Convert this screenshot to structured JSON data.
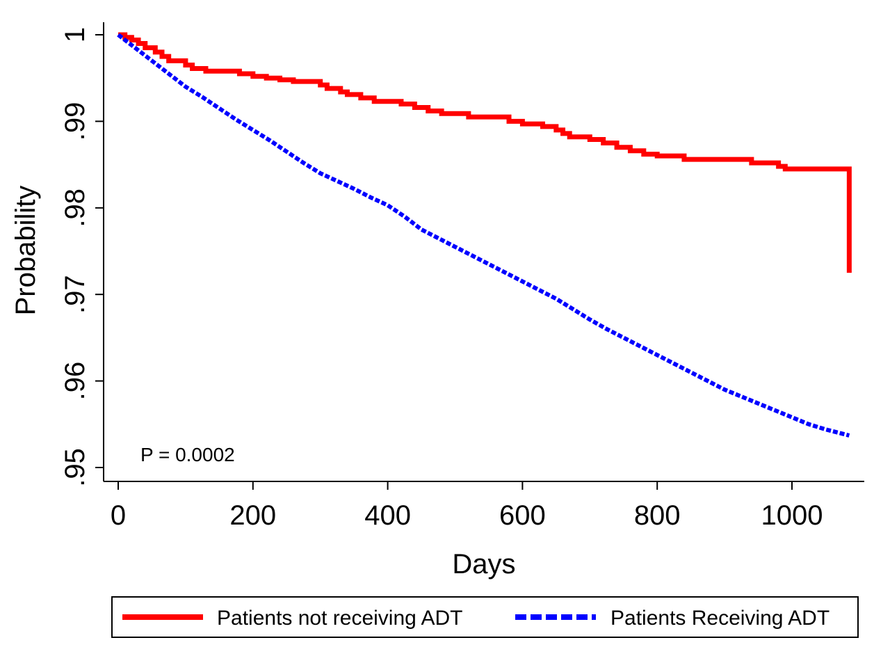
{
  "chart_data": {
    "type": "line",
    "title": "",
    "xlabel": "Days",
    "ylabel": "Probability",
    "xlim": [
      0,
      1100
    ],
    "ylim": [
      0.95,
      1.0
    ],
    "x_ticks": [
      0,
      200,
      400,
      600,
      800,
      1000
    ],
    "x_tick_labels": [
      "0",
      "200",
      "400",
      "600",
      "800",
      "1000"
    ],
    "y_ticks": [
      0.95,
      0.96,
      0.97,
      0.98,
      0.99,
      1.0
    ],
    "y_tick_labels": [
      ".95",
      ".96",
      ".97",
      ".98",
      ".99",
      "1"
    ],
    "grid": false,
    "legend_position": "bottom",
    "annotation": "P = 0.0002",
    "series": [
      {
        "name": "Patients not receiving ADT",
        "color": "#ff0000",
        "style": "solid",
        "step": true,
        "x": [
          0,
          10,
          20,
          30,
          40,
          55,
          65,
          75,
          100,
          110,
          130,
          180,
          200,
          220,
          240,
          260,
          300,
          310,
          330,
          340,
          360,
          380,
          420,
          440,
          460,
          480,
          520,
          580,
          600,
          630,
          650,
          660,
          670,
          700,
          720,
          740,
          760,
          780,
          800,
          840,
          940,
          980,
          990,
          1085
        ],
        "y": [
          1.0,
          0.9997,
          0.9994,
          0.999,
          0.9985,
          0.998,
          0.9975,
          0.997,
          0.9965,
          0.9961,
          0.9958,
          0.9955,
          0.9952,
          0.995,
          0.9948,
          0.9946,
          0.9942,
          0.9938,
          0.9934,
          0.9931,
          0.9927,
          0.9923,
          0.992,
          0.9916,
          0.9912,
          0.9909,
          0.9905,
          0.99,
          0.9897,
          0.9894,
          0.989,
          0.9886,
          0.9882,
          0.9879,
          0.9875,
          0.987,
          0.9866,
          0.9862,
          0.986,
          0.9856,
          0.9852,
          0.9848,
          0.9845,
          0.9725
        ]
      },
      {
        "name": "Patients Receiving ADT",
        "color": "#0000ff",
        "style": "dashed",
        "step": false,
        "x": [
          0,
          25,
          50,
          75,
          100,
          125,
          150,
          175,
          200,
          225,
          250,
          275,
          300,
          325,
          350,
          375,
          400,
          425,
          450,
          475,
          500,
          525,
          550,
          575,
          600,
          625,
          650,
          675,
          700,
          725,
          750,
          775,
          800,
          825,
          850,
          875,
          900,
          925,
          950,
          975,
          1000,
          1025,
          1050,
          1085
        ],
        "y": [
          1.0,
          0.9985,
          0.997,
          0.9955,
          0.994,
          0.9928,
          0.9915,
          0.9902,
          0.989,
          0.9878,
          0.9865,
          0.9852,
          0.984,
          0.9831,
          0.9822,
          0.9812,
          0.9803,
          0.979,
          0.9775,
          0.9765,
          0.9755,
          0.9745,
          0.9735,
          0.9725,
          0.9715,
          0.9705,
          0.9695,
          0.9683,
          0.9671,
          0.966,
          0.965,
          0.964,
          0.963,
          0.962,
          0.961,
          0.96,
          0.959,
          0.9582,
          0.9574,
          0.9566,
          0.9558,
          0.955,
          0.9544,
          0.9537
        ]
      }
    ]
  }
}
